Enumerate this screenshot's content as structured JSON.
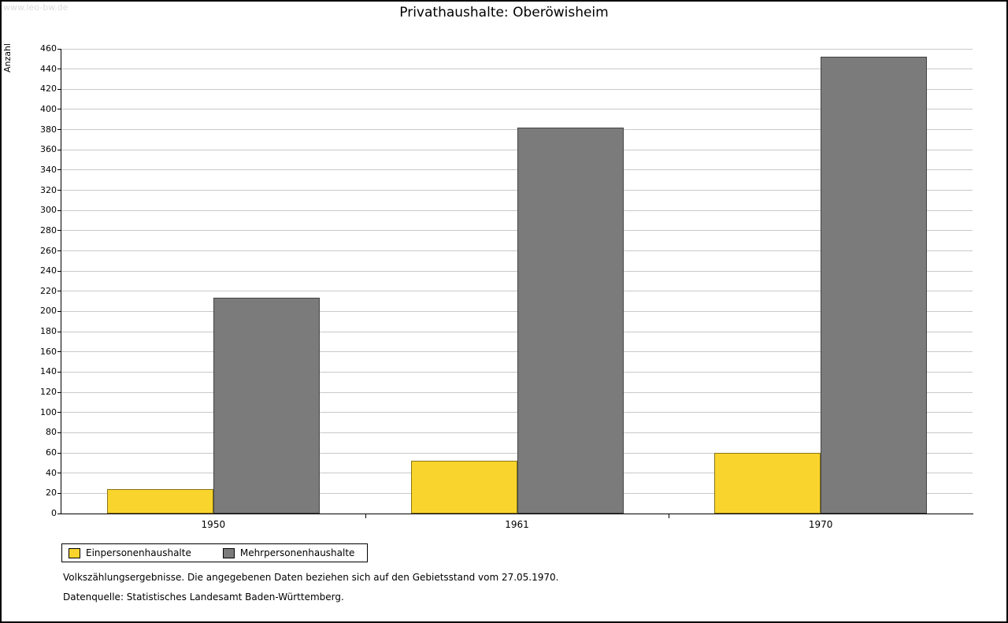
{
  "page": {
    "watermark": "www.leo-bw.de"
  },
  "chart_data": {
    "type": "bar",
    "title": "Privathaushalte: Oberöwisheim",
    "xlabel": "",
    "ylabel": "Anzahl",
    "categories": [
      "1950",
      "1961",
      "1970"
    ],
    "series": [
      {
        "name": "Einpersonenhaushalte",
        "color": "#f9d42c",
        "values": [
          24,
          52,
          60
        ]
      },
      {
        "name": "Mehrpersonenhaushalte",
        "color": "#7b7b7b",
        "values": [
          214,
          382,
          452
        ]
      }
    ],
    "ylim": [
      0,
      460
    ],
    "ytick_step": 20,
    "grid": true,
    "legend_position": "bottom-left"
  },
  "footer": {
    "line1": "Volkszählungsergebnisse. Die angegebenen Daten beziehen sich auf den Gebietsstand vom 27.05.1970.",
    "line2": "Datenquelle: Statistisches Landesamt Baden-Württemberg."
  }
}
